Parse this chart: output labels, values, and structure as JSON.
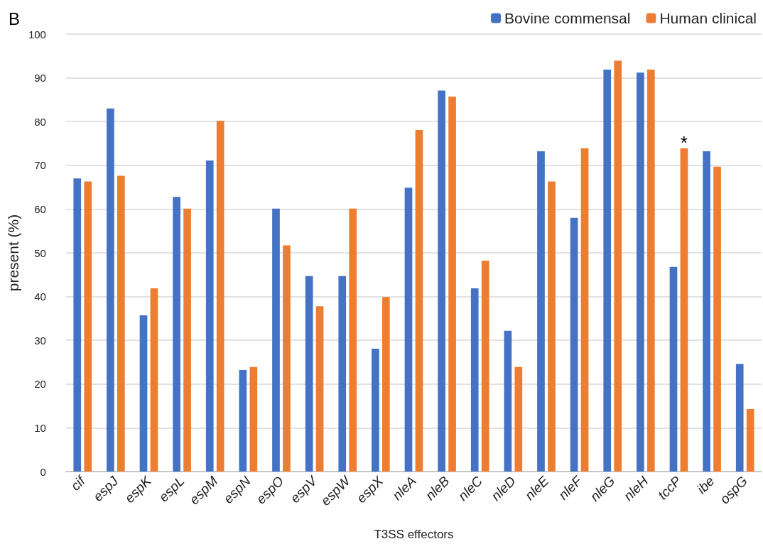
{
  "chart_data": {
    "type": "bar",
    "xlabel": "T3SS effectors",
    "ylabel": "present (%)",
    "categories": [
      "cif",
      "espJ",
      "espK",
      "espL",
      "espM",
      "espN",
      "espO",
      "espV",
      "espW",
      "espX",
      "nleA",
      "nleB",
      "nleC",
      "nleD",
      "nleE",
      "nleF",
      "nleG",
      "nleH",
      "tccP",
      "ibe",
      "ospG"
    ],
    "series": [
      {
        "name": "Bovine commensal",
        "color": "#4472c4",
        "values": [
          67,
          83,
          35.7,
          62.8,
          71.1,
          23.2,
          60.1,
          44.7,
          44.7,
          28.1,
          64.9,
          87.1,
          41.9,
          32.2,
          73.2,
          58,
          91.9,
          91.2,
          46.8,
          73.2,
          24.6
        ]
      },
      {
        "name": "Human clinical",
        "color": "#ed7d31",
        "values": [
          66.3,
          67.6,
          41.9,
          60.1,
          80.2,
          23.9,
          51.7,
          37.8,
          60.1,
          39.9,
          78.1,
          85.7,
          48.2,
          23.9,
          66.3,
          73.9,
          93.9,
          91.9,
          73.9,
          69.7,
          14.3
        ]
      }
    ],
    "ylim": [
      0,
      100
    ],
    "yticks": [
      0,
      10,
      20,
      30,
      40,
      50,
      60,
      70,
      80,
      90,
      100
    ],
    "grid": "y",
    "legend": "top right",
    "annotations": [
      "B",
      {
        "text": "*",
        "x": "tccP",
        "y": 73.9
      }
    ]
  }
}
